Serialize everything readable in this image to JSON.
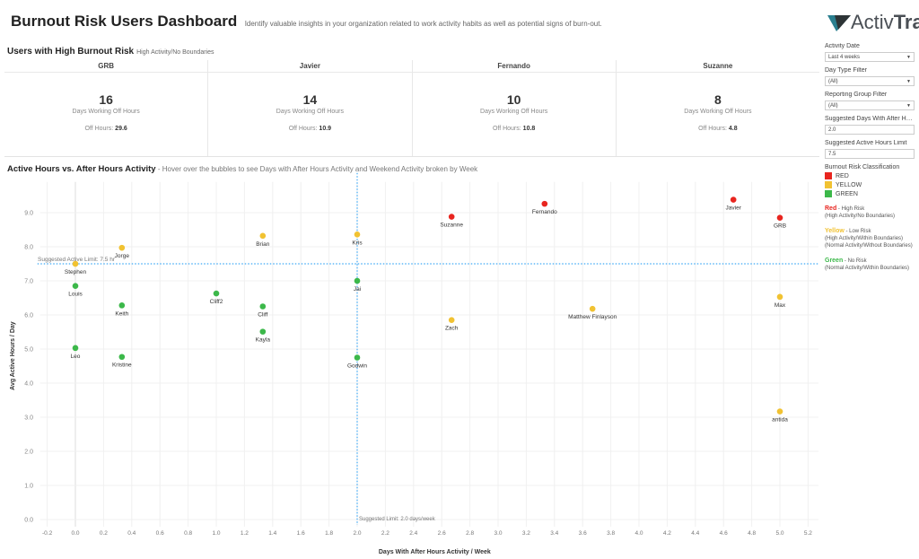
{
  "header": {
    "title": "Burnout Risk Users Dashboard",
    "subtitle": "Identify valuable insights in your organization related to work activity habits as well as potential signs of burn-out."
  },
  "logo": {
    "text_light": "Activ",
    "text_bold": "Trak"
  },
  "high_risk": {
    "title": "Users with High Burnout Risk",
    "subtitle": "High Activity/No Boundaries",
    "cards": [
      {
        "name": "GRB",
        "days": "16",
        "days_label": "Days Working Off Hours",
        "off_label": "Off Hours:",
        "off_value": "29.6"
      },
      {
        "name": "Javier",
        "days": "14",
        "days_label": "Days Working Off Hours",
        "off_label": "Off Hours:",
        "off_value": "10.9"
      },
      {
        "name": "Fernando",
        "days": "10",
        "days_label": "Days Working Off Hours",
        "off_label": "Off Hours:",
        "off_value": "10.8"
      },
      {
        "name": "Suzanne",
        "days": "8",
        "days_label": "Days Working Off Hours",
        "off_label": "Off Hours:",
        "off_value": "4.8"
      }
    ]
  },
  "chart_section": {
    "title": "Active Hours vs. After Hours Activity",
    "subtitle": "- Hover over the bubbles to see Days with After Hours Activity and Weekend Activity broken by Week"
  },
  "panel": {
    "filters": [
      {
        "label": "Activity Date",
        "value": "Last 4 weeks",
        "type": "select"
      },
      {
        "label": "Day Type Filter",
        "value": "(All)",
        "type": "select"
      },
      {
        "label": "Reporting Group Filter",
        "value": "(All)",
        "type": "select"
      },
      {
        "label": "Suggested Days With After Ho...",
        "value": "2.0",
        "type": "input"
      },
      {
        "label": "Suggested Active Hours Limit",
        "value": "7.5",
        "type": "input"
      }
    ],
    "legend_title": "Burnout Risk Classification",
    "legend": [
      {
        "label": "RED",
        "color": "#e8251f"
      },
      {
        "label": "YELLOW",
        "color": "#f1c232"
      },
      {
        "label": "GREEN",
        "color": "#3cb84a"
      }
    ],
    "descriptions": [
      {
        "key": "Red",
        "text": "- High Risk",
        "lines": [
          "(High Activity/No Boundaries)"
        ],
        "color": "#e8251f"
      },
      {
        "key": "Yellow",
        "text": "- Low Risk",
        "lines": [
          "(High Activity/Within Boundaries)",
          "(Normal Activity/Without Boundaries)"
        ],
        "color": "#f1c232"
      },
      {
        "key": "Green",
        "text": "- No Risk",
        "lines": [
          "(Normal Activity/Within Boundaries)"
        ],
        "color": "#3cb84a"
      }
    ]
  },
  "chart_data": {
    "type": "scatter",
    "xlabel": "Days With After Hours Activity / Week",
    "ylabel": "Avg Active Hours / Day",
    "xlim": [
      -0.25,
      5.3
    ],
    "ylim": [
      0,
      9.9
    ],
    "xticks": [
      "-0.2",
      "0.0",
      "0.2",
      "0.4",
      "0.6",
      "0.8",
      "1.0",
      "1.2",
      "1.4",
      "1.6",
      "1.8",
      "2.0",
      "2.2",
      "2.4",
      "2.6",
      "2.8",
      "3.0",
      "3.2",
      "3.4",
      "3.6",
      "3.8",
      "4.0",
      "4.2",
      "4.4",
      "4.6",
      "4.8",
      "5.0",
      "5.2"
    ],
    "yticks": [
      "0.0",
      "1.0",
      "2.0",
      "3.0",
      "4.0",
      "5.0",
      "6.0",
      "7.0",
      "8.0",
      "9.0"
    ],
    "grid": true,
    "reference_lines": [
      {
        "axis": "y",
        "value": 7.5,
        "label": "Suggested Active Limit: 7.5 hr"
      },
      {
        "axis": "x",
        "value": 2.0,
        "label": "Suggested Limit: 2.0 days/week"
      }
    ],
    "colors": {
      "red": "#e8251f",
      "yellow": "#f1c232",
      "green": "#3cb84a"
    },
    "points": [
      {
        "name": "Stephen",
        "x": 0,
        "y": 7.5,
        "risk": "yellow"
      },
      {
        "name": "Jorge",
        "x": 0.33,
        "y": 7.97,
        "risk": "yellow"
      },
      {
        "name": "Louis",
        "x": 0,
        "y": 6.85,
        "risk": "green"
      },
      {
        "name": "Keith",
        "x": 0.33,
        "y": 6.28,
        "risk": "green"
      },
      {
        "name": "Leo",
        "x": 0,
        "y": 5.03,
        "risk": "green"
      },
      {
        "name": "Kristine",
        "x": 0.33,
        "y": 4.77,
        "risk": "green"
      },
      {
        "name": "Cliff2",
        "x": 1.0,
        "y": 6.63,
        "risk": "green"
      },
      {
        "name": "Brian",
        "x": 1.33,
        "y": 8.32,
        "risk": "yellow"
      },
      {
        "name": "Cliff",
        "x": 1.33,
        "y": 6.25,
        "risk": "green"
      },
      {
        "name": "Kayla",
        "x": 1.33,
        "y": 5.51,
        "risk": "green"
      },
      {
        "name": "Kris",
        "x": 2.0,
        "y": 8.36,
        "risk": "yellow"
      },
      {
        "name": "Jai",
        "x": 2.0,
        "y": 7.0,
        "risk": "green"
      },
      {
        "name": "Godwin",
        "x": 2.0,
        "y": 4.75,
        "risk": "green"
      },
      {
        "name": "Suzanne",
        "x": 2.67,
        "y": 8.88,
        "risk": "red"
      },
      {
        "name": "Zach",
        "x": 2.67,
        "y": 5.85,
        "risk": "yellow"
      },
      {
        "name": "Fernando",
        "x": 3.33,
        "y": 9.26,
        "risk": "red"
      },
      {
        "name": "Matthew Finlayson",
        "x": 3.67,
        "y": 6.18,
        "risk": "yellow"
      },
      {
        "name": "Javier",
        "x": 4.67,
        "y": 9.38,
        "risk": "red"
      },
      {
        "name": "GRB",
        "x": 5.0,
        "y": 8.85,
        "risk": "red"
      },
      {
        "name": "Max",
        "x": 5.0,
        "y": 6.53,
        "risk": "yellow"
      },
      {
        "name": "antida",
        "x": 5.0,
        "y": 3.17,
        "risk": "yellow"
      }
    ]
  }
}
